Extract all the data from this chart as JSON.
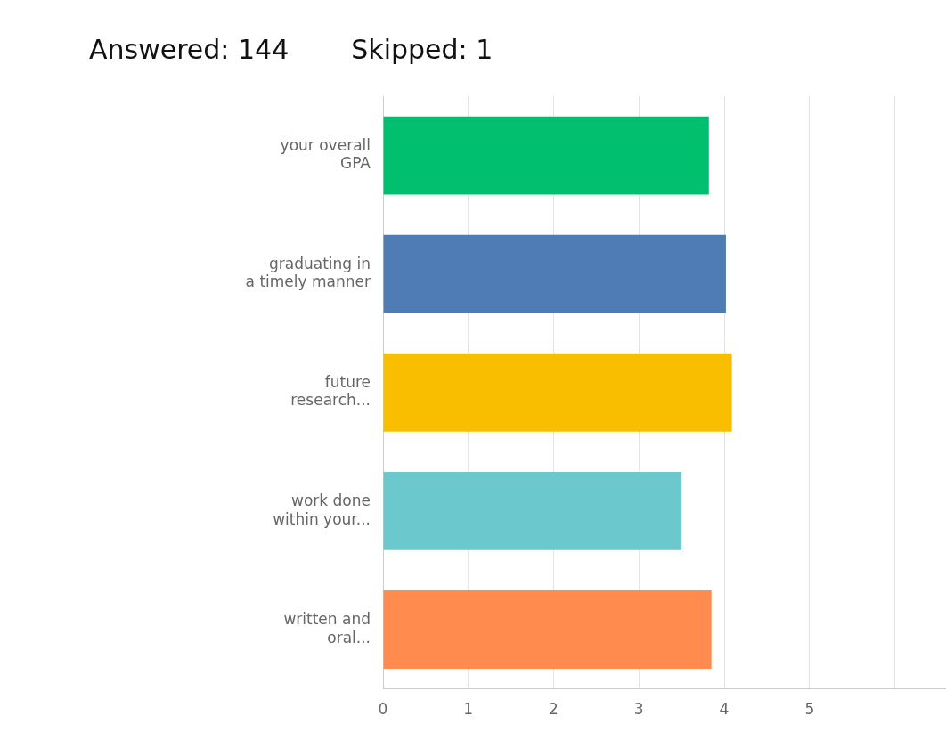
{
  "chart_data": {
    "type": "bar",
    "orientation": "horizontal",
    "title": "Answered: 144",
    "subtitle": "Skipped: 1",
    "categories": [
      "your overall\nGPA",
      "graduating in\na timely manner",
      "future\nresearch...",
      "work done\nwithin your...",
      "written and\noral..."
    ],
    "values": [
      3.82,
      4.02,
      4.09,
      3.5,
      3.85
    ],
    "colors": [
      "#00bf6f",
      "#507cb6",
      "#f9be00",
      "#6bc8cd",
      "#ff8b4f"
    ],
    "xlim": [
      0,
      6.6
    ],
    "xticks": [
      0,
      1,
      2,
      3,
      4,
      5,
      {
        "value": 6,
        "label": null
      }
    ],
    "grid": "x",
    "legend": false
  }
}
